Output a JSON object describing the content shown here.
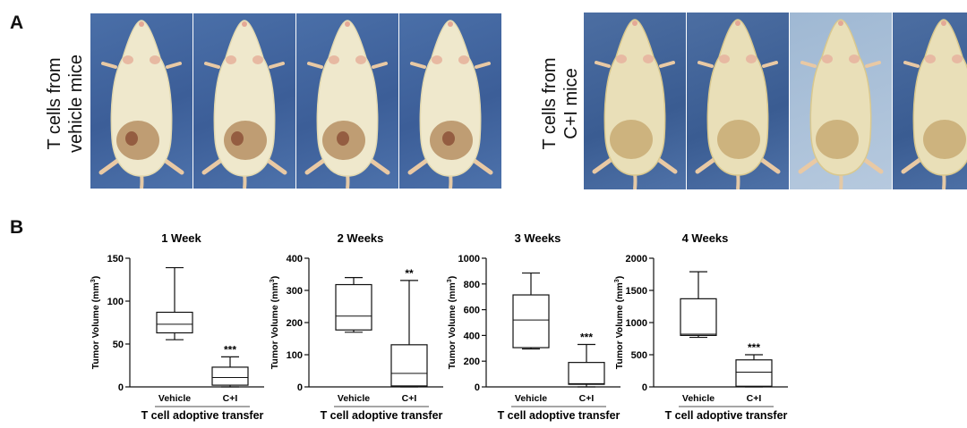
{
  "panel_a": {
    "letter": "A",
    "left_label_line1": "T cells from",
    "left_label_line2": "vehicle mice",
    "right_label_line1": "T cells from",
    "right_label_line2": "C+I mice",
    "left_photos": [
      {
        "name": "mouse-photo-vehicle-1",
        "tumor": "dark"
      },
      {
        "name": "mouse-photo-vehicle-2",
        "tumor": "dark"
      },
      {
        "name": "mouse-photo-vehicle-3",
        "tumor": "dark"
      },
      {
        "name": "mouse-photo-vehicle-4",
        "tumor": "dark"
      }
    ],
    "right_photos": [
      {
        "name": "mouse-photo-ci-1",
        "tumor": "light"
      },
      {
        "name": "mouse-photo-ci-2",
        "tumor": "light"
      },
      {
        "name": "mouse-photo-ci-3",
        "tumor": "light"
      },
      {
        "name": "mouse-photo-ci-4",
        "tumor": "light"
      }
    ]
  },
  "panel_b": {
    "letter": "B"
  },
  "chart_data": [
    {
      "type": "boxplot",
      "title": "1 Week",
      "ylabel": "Tumor Volume (mm",
      "ylabel_sup": "3",
      "ylabel_close": ")",
      "xlabel": "T cell adoptive transfer",
      "ylim": [
        0,
        150
      ],
      "yticks": [
        0,
        50,
        100,
        150
      ],
      "categories": [
        "Vehicle",
        "C+I"
      ],
      "boxes": [
        {
          "min": 55,
          "q1": 63,
          "median": 73,
          "q3": 87,
          "max": 139
        },
        {
          "min": 0,
          "q1": 2,
          "median": 11,
          "q3": 23,
          "max": 35
        }
      ],
      "significance": [
        "",
        "***"
      ]
    },
    {
      "type": "boxplot",
      "title": "2 Weeks",
      "ylabel": "Tumor Volume (mm",
      "ylabel_sup": "3",
      "ylabel_close": ")",
      "xlabel": "T cell adoptive transfer",
      "ylim": [
        0,
        400
      ],
      "yticks": [
        0,
        100,
        200,
        300,
        400
      ],
      "categories": [
        "Vehicle",
        "C+I"
      ],
      "boxes": [
        {
          "min": 170,
          "q1": 177,
          "median": 220,
          "q3": 318,
          "max": 340
        },
        {
          "min": 0,
          "q1": 3,
          "median": 42,
          "q3": 131,
          "max": 331
        }
      ],
      "significance": [
        "",
        "**"
      ]
    },
    {
      "type": "boxplot",
      "title": "3 Weeks",
      "ylabel": "Tumor Volume (mm",
      "ylabel_sup": "3",
      "ylabel_close": ")",
      "xlabel": "T cell adoptive transfer",
      "ylim": [
        0,
        1000
      ],
      "yticks": [
        0,
        200,
        400,
        600,
        800,
        1000
      ],
      "categories": [
        "Vehicle",
        "C+I"
      ],
      "boxes": [
        {
          "min": 295,
          "q1": 305,
          "median": 520,
          "q3": 715,
          "max": 885
        },
        {
          "min": 0,
          "q1": 20,
          "median": 25,
          "q3": 190,
          "max": 330
        }
      ],
      "significance": [
        "",
        "***"
      ]
    },
    {
      "type": "boxplot",
      "title": "4 Weeks",
      "ylabel": "Tumor Volume (mm",
      "ylabel_sup": "3",
      "ylabel_close": ")",
      "xlabel": "T cell adoptive transfer",
      "ylim": [
        0,
        2000
      ],
      "yticks": [
        0,
        500,
        1000,
        1500,
        2000
      ],
      "categories": [
        "Vehicle",
        "C+I"
      ],
      "boxes": [
        {
          "min": 770,
          "q1": 800,
          "median": 820,
          "q3": 1370,
          "max": 1790
        },
        {
          "min": 0,
          "q1": 10,
          "median": 230,
          "q3": 420,
          "max": 500
        }
      ],
      "significance": [
        "",
        "***"
      ]
    }
  ]
}
